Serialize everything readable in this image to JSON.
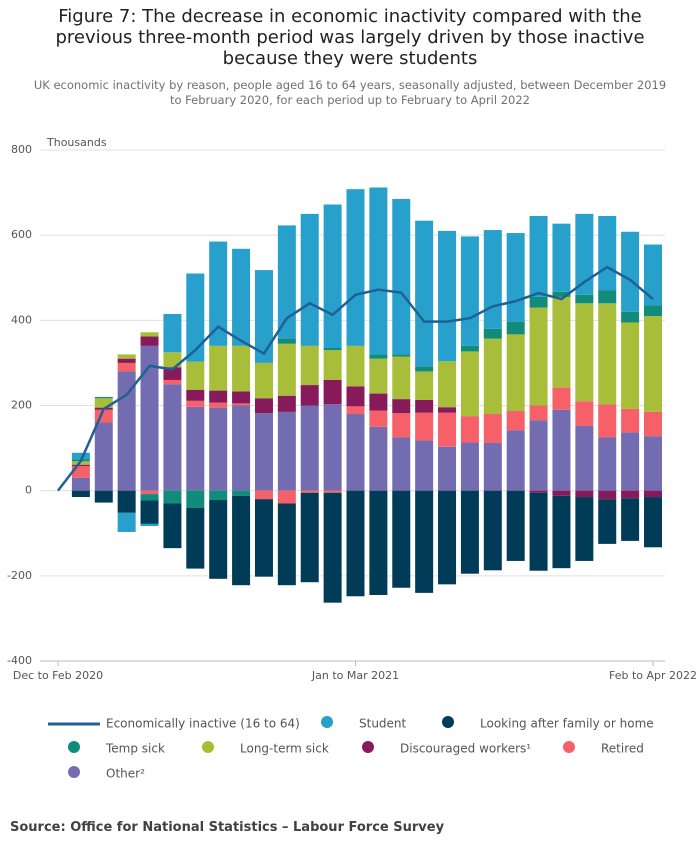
{
  "chart_data": {
    "type": "bar",
    "title": "Figure 7: The decrease in economic inactivity compared with the previous three-month period was largely driven by those inactive because they were students",
    "subtitle": "UK economic inactivity by reason, people aged 16 to 64 years, seasonally adjusted, between December 2019 to February 2020, for each period up to February to April 2022",
    "y_axis_label": "Thousands",
    "source": "Source: Office for National Statistics – Labour Force Survey",
    "categories": [
      "Dec to Feb 2020",
      null,
      null,
      null,
      null,
      null,
      null,
      null,
      null,
      null,
      null,
      null,
      null,
      "Jan to Mar 2021",
      null,
      null,
      null,
      null,
      null,
      null,
      null,
      null,
      null,
      null,
      null,
      null,
      "Feb to Apr 2022"
    ],
    "ylim": [
      -400,
      800
    ],
    "yticks": [
      -400,
      -200,
      0,
      200,
      400,
      600,
      800
    ],
    "grid": true,
    "series": [
      {
        "name": "Economically inactive (16 to 64)",
        "type": "line",
        "color": "#206095",
        "values": [
          0,
          70,
          192,
          225,
          293,
          285,
          330,
          385,
          352,
          322,
          405,
          440,
          413,
          460,
          472,
          465,
          397,
          397,
          405,
          433,
          445,
          464,
          450,
          490,
          525,
          495,
          450
        ]
      },
      {
        "name": "Student",
        "color": "#27a0cc",
        "values": [
          0,
          15,
          0,
          -45,
          -5,
          90,
          207,
          245,
          228,
          218,
          265,
          310,
          337,
          368,
          392,
          365,
          342,
          306,
          257,
          232,
          208,
          190,
          160,
          190,
          175,
          188,
          143
        ]
      },
      {
        "name": "Looking after family or home",
        "color": "#003c57",
        "values": [
          0,
          -15,
          -28,
          -52,
          -55,
          -105,
          -143,
          -185,
          -210,
          -182,
          -192,
          -210,
          -258,
          -248,
          -245,
          -228,
          -240,
          -220,
          -195,
          -187,
          -165,
          -183,
          -170,
          -150,
          -105,
          -100,
          -118
        ]
      },
      {
        "name": "Temp sick",
        "color": "#118c7b",
        "values": [
          0,
          5,
          3,
          0,
          -15,
          -30,
          -40,
          -22,
          -12,
          0,
          13,
          0,
          5,
          0,
          10,
          5,
          12,
          0,
          13,
          23,
          30,
          25,
          12,
          20,
          30,
          25,
          25
        ]
      },
      {
        "name": "Long-term sick",
        "color": "#a8bd3a",
        "values": [
          0,
          8,
          22,
          10,
          10,
          35,
          66,
          105,
          107,
          83,
          122,
          92,
          70,
          95,
          82,
          100,
          67,
          108,
          152,
          177,
          180,
          230,
          213,
          230,
          237,
          203,
          225
        ]
      },
      {
        "name": "Discouraged workers¹",
        "color": "#871a5b",
        "values": [
          0,
          3,
          5,
          10,
          22,
          30,
          26,
          28,
          28,
          35,
          38,
          48,
          57,
          47,
          40,
          33,
          30,
          13,
          0,
          0,
          0,
          -5,
          -12,
          -15,
          -20,
          -18,
          -15
        ]
      },
      {
        "name": "Retired",
        "color": "#f66068",
        "values": [
          0,
          28,
          30,
          20,
          -8,
          10,
          14,
          12,
          5,
          -20,
          -30,
          -5,
          -5,
          18,
          38,
          57,
          65,
          80,
          62,
          68,
          45,
          35,
          52,
          58,
          78,
          55,
          57
        ]
      },
      {
        "name": "Other²",
        "color": "#746cb1",
        "values": [
          0,
          30,
          160,
          280,
          340,
          250,
          197,
          195,
          200,
          182,
          185,
          200,
          203,
          180,
          150,
          125,
          118,
          103,
          113,
          112,
          142,
          165,
          190,
          152,
          125,
          137,
          128
        ]
      }
    ]
  }
}
